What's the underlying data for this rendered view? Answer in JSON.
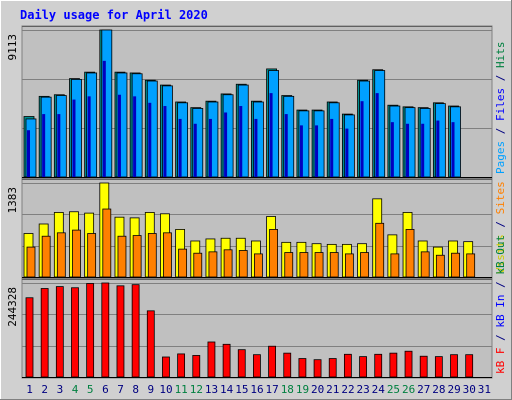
{
  "chart_data": {
    "title": "Daily usage for April 2020",
    "type": "bar",
    "categories": [
      "1",
      "2",
      "3",
      "4",
      "5",
      "6",
      "7",
      "8",
      "9",
      "10",
      "11",
      "12",
      "13",
      "14",
      "15",
      "16",
      "17",
      "18",
      "19",
      "20",
      "21",
      "22",
      "23",
      "24",
      "25",
      "26",
      "27",
      "28",
      "29",
      "30",
      "31"
    ],
    "weekend_days": [
      "4",
      "5",
      "11",
      "12",
      "18",
      "19",
      "25",
      "26"
    ],
    "panels": [
      {
        "id": "top",
        "ymax": 9113,
        "ytick": "9113",
        "right_label": [
          {
            "text": "Pages",
            "color": "#00a0ff"
          },
          {
            "text": " / ",
            "color": "#000080"
          },
          {
            "text": "Files",
            "color": "#0000ff"
          },
          {
            "text": " / ",
            "color": "#000080"
          },
          {
            "text": "Hits",
            "color": "#008040"
          }
        ],
        "series": [
          {
            "name": "Hits",
            "color": "#008040",
            "values": [
              3750,
              5000,
              5100,
              6100,
              6500,
              9113,
              6500,
              6450,
              6000,
              5700,
              4650,
              4300,
              4700,
              5150,
              5750,
              4700,
              6700,
              5050,
              4150,
              4150,
              4650,
              3900,
              6000,
              6650,
              4450,
              4350,
              4300,
              4600,
              4400,
              null,
              null
            ]
          },
          {
            "name": "Files",
            "color": "#0000ff",
            "values": [
              2900,
              3900,
              3900,
              4800,
              5000,
              7200,
              5100,
              5000,
              4600,
              4400,
              3600,
              3300,
              3600,
              4000,
              4400,
              3600,
              5200,
              3900,
              3200,
              3200,
              3600,
              3000,
              4700,
              5200,
              3400,
              3300,
              3300,
              3500,
              3400,
              null,
              null
            ]
          },
          {
            "name": "Pages",
            "color": "#00a0ff",
            "values": [
              3600,
              4950,
              5050,
              6050,
              6450,
              9113,
              6450,
              6400,
              5950,
              5650,
              4600,
              4250,
              4650,
              5100,
              5700,
              4650,
              6600,
              5000,
              4100,
              4100,
              4600,
              3850,
              5950,
              6600,
              4400,
              4300,
              4250,
              4550,
              4350,
              null,
              null
            ]
          }
        ]
      },
      {
        "id": "middle",
        "ymax": 1383,
        "ytick": "1383",
        "right_label": [
          {
            "text": "Visits",
            "color": "#cccc00"
          },
          {
            "text": " / ",
            "color": "#000080"
          },
          {
            "text": "Sites",
            "color": "#ff8000"
          }
        ],
        "series": [
          {
            "name": "Visits",
            "color": "#ffff00",
            "values": [
              640,
              780,
              950,
              960,
              940,
              1383,
              880,
              870,
              950,
              930,
              700,
              530,
              560,
              570,
              570,
              530,
              890,
              510,
              510,
              490,
              480,
              480,
              490,
              1150,
              620,
              950,
              530,
              440,
              530,
              520,
              null
            ]
          },
          {
            "name": "Sites",
            "color": "#ff8000",
            "values": [
              440,
              600,
              650,
              690,
              640,
              1000,
              600,
              610,
              640,
              650,
              410,
              350,
              370,
              400,
              390,
              340,
              700,
              360,
              360,
              360,
              360,
              340,
              360,
              790,
              340,
              700,
              370,
              320,
              350,
              340,
              null
            ]
          }
        ]
      },
      {
        "id": "bottom",
        "ymax": 244328,
        "ytick": "244328",
        "right_label": [
          {
            "text": "kB F",
            "color": "#ff0000"
          },
          {
            "text": " / ",
            "color": "#000080"
          },
          {
            "text": "kB In",
            "color": "#0000ff"
          },
          {
            "text": " / ",
            "color": "#000080"
          },
          {
            "text": "kB Out",
            "color": "#008040"
          }
        ],
        "series": [
          {
            "name": "kB F",
            "color": "#ff0000",
            "values": [
              206000,
              230000,
              235000,
              232000,
              243000,
              244328,
              237000,
              240000,
              172000,
              52000,
              60000,
              56000,
              91000,
              85000,
              71000,
              58000,
              80000,
              62000,
              48000,
              45000,
              48000,
              59000,
              53000,
              59000,
              62000,
              67000,
              54000,
              53000,
              58000,
              58000,
              null
            ]
          }
        ]
      }
    ]
  },
  "colors": {
    "background": "#d0d0d0",
    "plot_background": "#c0c0c0",
    "gridline": "#808080",
    "title": "#0000ff",
    "day_label": "#000080",
    "weekend_label": "#008040"
  }
}
